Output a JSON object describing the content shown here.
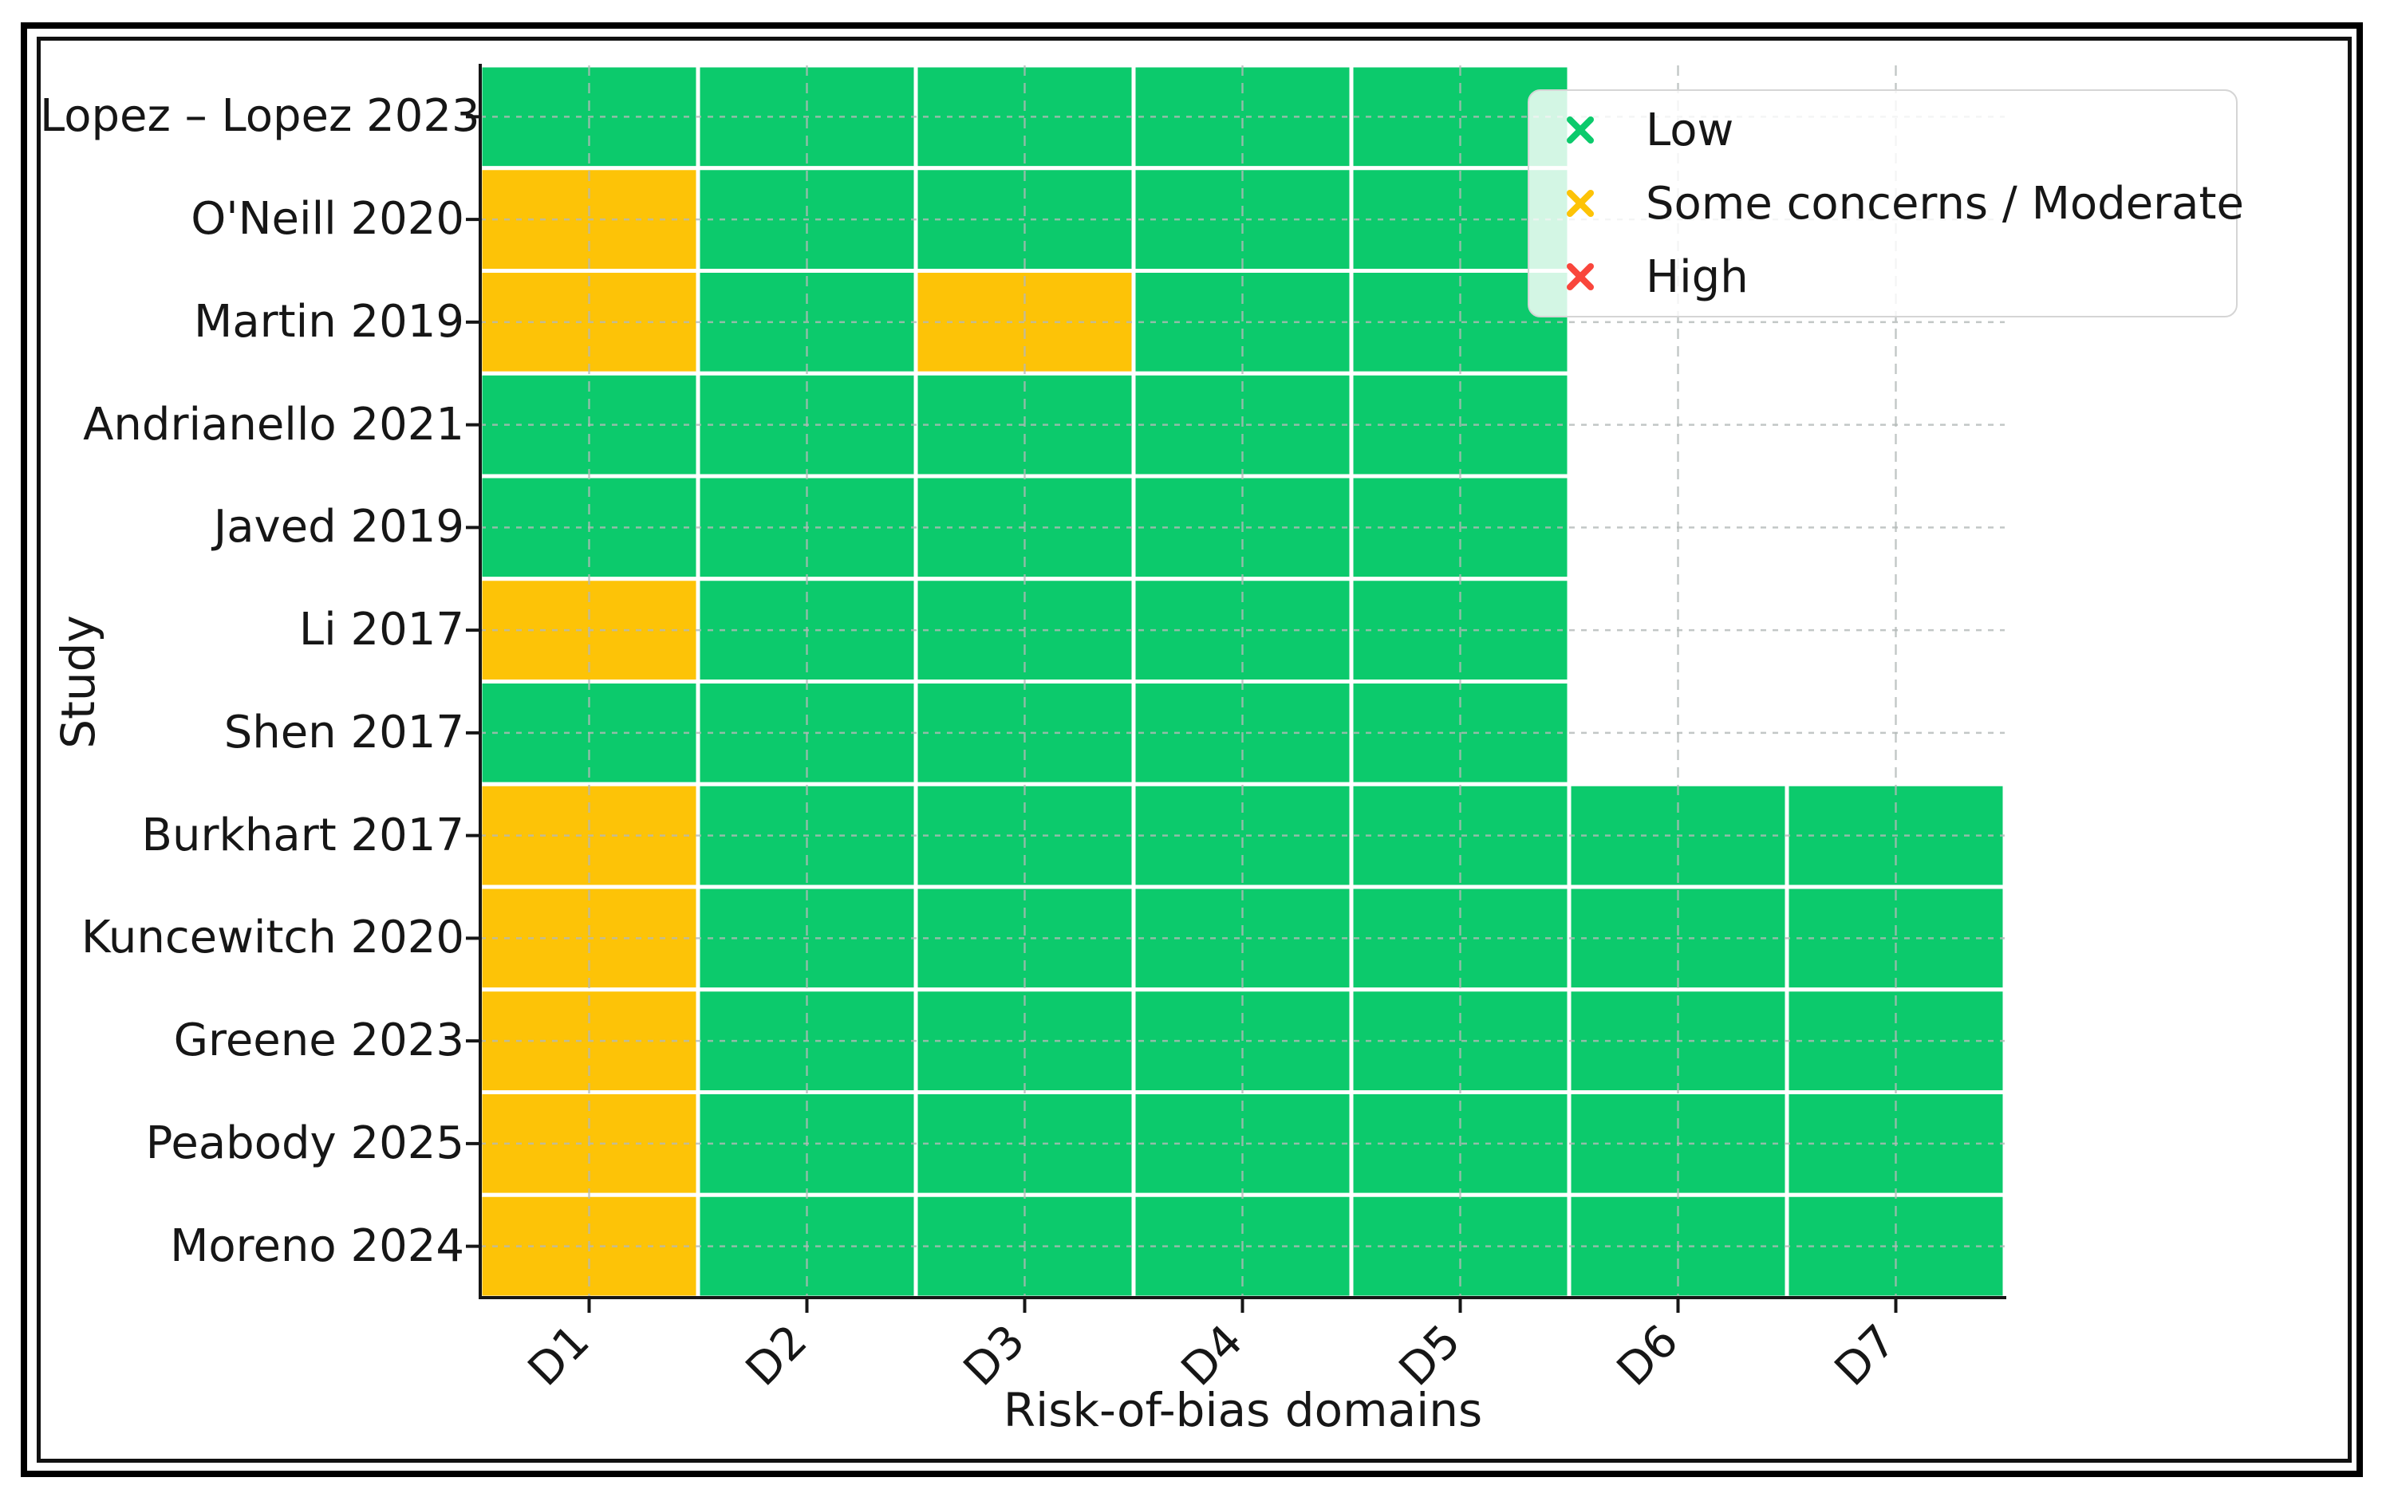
{
  "chart_data": {
    "type": "heatmap",
    "title": "",
    "xlabel": "Risk-of-bias domains",
    "ylabel": "Study",
    "x_ticks": [
      "D1",
      "D2",
      "D3",
      "D4",
      "D5",
      "D6",
      "D7"
    ],
    "x_tick_rotation": 45,
    "grid": true,
    "grid_style": "dashed",
    "legend_position": "upper right",
    "rating_scale": {
      "L": "Low",
      "M": "Some concerns / Moderate",
      "H": "High"
    },
    "legend": [
      {
        "label": "Low",
        "color": "#0cca6c"
      },
      {
        "label": "Some concerns / Moderate",
        "color": "#fdc307"
      },
      {
        "label": "High",
        "color": "#f9463c"
      }
    ],
    "rows": [
      {
        "study": "Lopez – Lopez 2023",
        "ratings": [
          "L",
          "L",
          "L",
          "L",
          "L",
          null,
          null
        ]
      },
      {
        "study": "O'Neill 2020",
        "ratings": [
          "M",
          "L",
          "L",
          "L",
          "L",
          null,
          null
        ]
      },
      {
        "study": "Martin 2019",
        "ratings": [
          "M",
          "L",
          "M",
          "L",
          "L",
          null,
          null
        ]
      },
      {
        "study": "Andrianello 2021",
        "ratings": [
          "L",
          "L",
          "L",
          "L",
          "L",
          null,
          null
        ]
      },
      {
        "study": "Javed 2019",
        "ratings": [
          "L",
          "L",
          "L",
          "L",
          "L",
          null,
          null
        ]
      },
      {
        "study": "Li 2017",
        "ratings": [
          "M",
          "L",
          "L",
          "L",
          "L",
          null,
          null
        ]
      },
      {
        "study": "Shen 2017",
        "ratings": [
          "L",
          "L",
          "L",
          "L",
          "L",
          null,
          null
        ]
      },
      {
        "study": "Burkhart 2017",
        "ratings": [
          "M",
          "L",
          "L",
          "L",
          "L",
          "L",
          "L"
        ]
      },
      {
        "study": "Kuncewitch 2020",
        "ratings": [
          "M",
          "L",
          "L",
          "L",
          "L",
          "L",
          "L"
        ]
      },
      {
        "study": "Greene 2023",
        "ratings": [
          "M",
          "L",
          "L",
          "L",
          "L",
          "L",
          "L"
        ]
      },
      {
        "study": "Peabody 2025",
        "ratings": [
          "M",
          "L",
          "L",
          "L",
          "L",
          "L",
          "L"
        ]
      },
      {
        "study": "Moreno 2024",
        "ratings": [
          "M",
          "L",
          "L",
          "L",
          "L",
          "L",
          "L"
        ]
      }
    ],
    "colors": {
      "low": "#0cca6c",
      "moderate": "#fdc307",
      "high": "#f9463c",
      "grid": "#b4bab8",
      "axis": "#161616",
      "cell_border": "#ffffff",
      "legend_border": "#d5d5d5"
    }
  }
}
